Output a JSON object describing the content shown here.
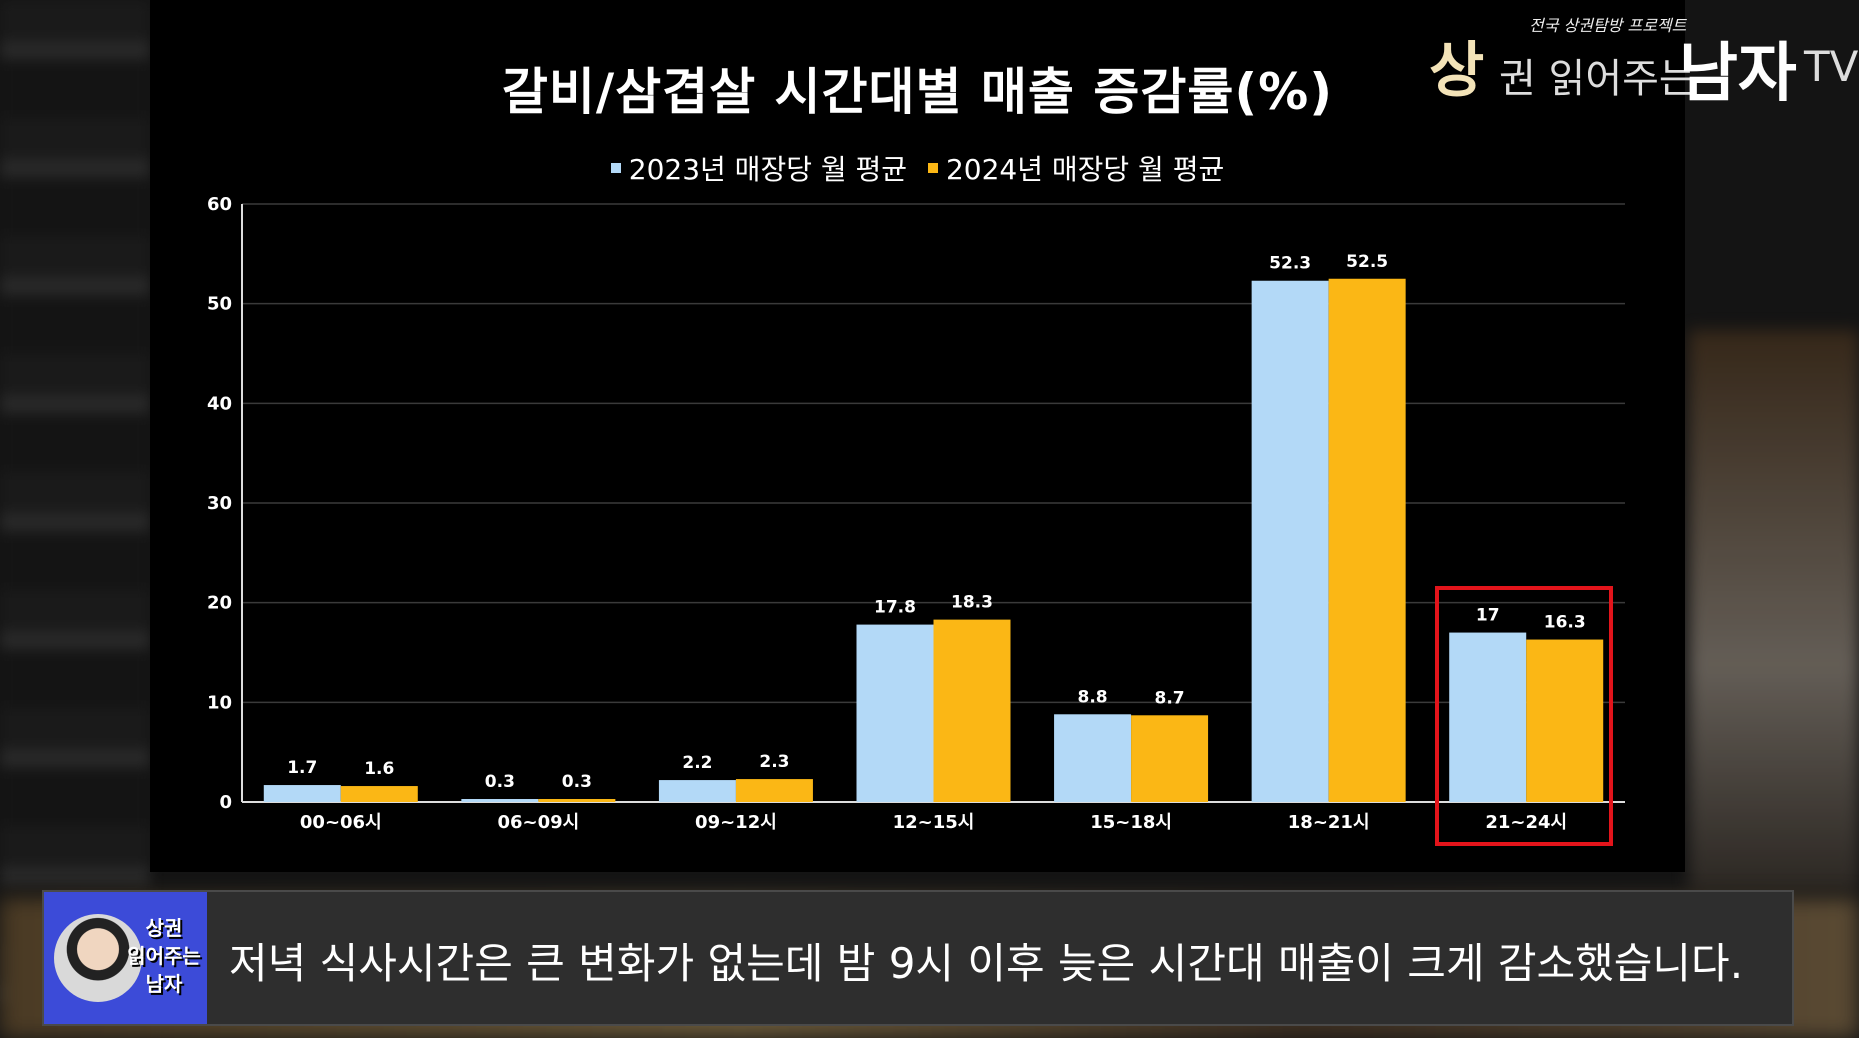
{
  "brand": {
    "tagline": "전국 상권탐방 프로젝트",
    "part1": "상",
    "part2": "권 읽어주는",
    "part3": "남자",
    "part4": "TV"
  },
  "chart_data": {
    "type": "bar",
    "title": "갈비/삼겹살 시간대별 매출 증감률(%)",
    "categories": [
      "00~06시",
      "06~09시",
      "09~12시",
      "12~15시",
      "15~18시",
      "18~21시",
      "21~24시"
    ],
    "series": [
      {
        "name": "2023년 매장당 월 평균",
        "color": "#b3d9f7",
        "values": [
          1.7,
          0.3,
          2.2,
          17.8,
          8.8,
          52.3,
          17
        ],
        "labels": [
          "1.7",
          "0.3",
          "2.2",
          "17.8",
          "8.8",
          "52.3",
          "17"
        ]
      },
      {
        "name": "2024년 매장당 월 평균",
        "color": "#fbb715",
        "values": [
          1.6,
          0.3,
          2.3,
          18.3,
          8.7,
          52.5,
          16.3
        ],
        "labels": [
          "1.6",
          "0.3",
          "2.3",
          "18.3",
          "8.7",
          "52.5",
          "16.3"
        ]
      }
    ],
    "ylim": [
      0,
      60
    ],
    "yticks": [
      "0",
      "10",
      "20",
      "30",
      "40",
      "50",
      "60"
    ],
    "grid": true,
    "legend_position": "top",
    "highlighted_category": "21~24시",
    "highlight_color": "#e3141b"
  },
  "subtitle": {
    "logo_lines": [
      "상권",
      "읽어주는",
      "남자"
    ],
    "text": "저녁 식사시간은 큰 변화가 없는데 밤 9시 이후 늦은 시간대 매출이 크게 감소했습니다."
  }
}
